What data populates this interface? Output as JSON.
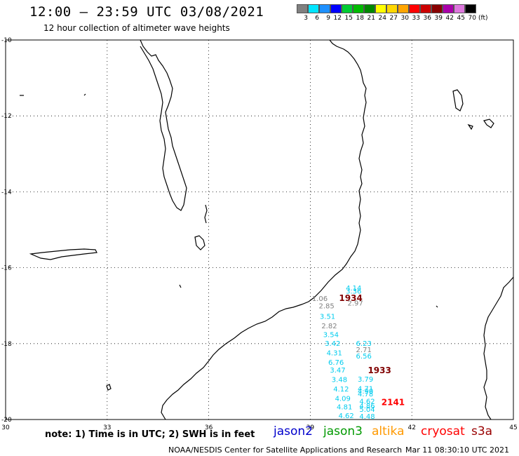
{
  "header": {
    "title": "12:00 – 23:59 UTC 03/08/2021",
    "subtitle": "12 hour collection of altimeter wave heights"
  },
  "color_scale": {
    "unit_label": "(ft)",
    "bins": [
      {
        "label": "3",
        "color": "#808080"
      },
      {
        "label": "6",
        "color": "#00e5ff"
      },
      {
        "label": "9",
        "color": "#1e90ff"
      },
      {
        "label": "12",
        "color": "#0000ff"
      },
      {
        "label": "15",
        "color": "#00cc33"
      },
      {
        "label": "18",
        "color": "#00bb00"
      },
      {
        "label": "21",
        "color": "#008800"
      },
      {
        "label": "24",
        "color": "#ffff00"
      },
      {
        "label": "27",
        "color": "#ffd700"
      },
      {
        "label": "30",
        "color": "#ffa500"
      },
      {
        "label": "33",
        "color": "#ff0000"
      },
      {
        "label": "36",
        "color": "#cc0000"
      },
      {
        "label": "39",
        "color": "#880000"
      },
      {
        "label": "42",
        "color": "#aa00aa"
      },
      {
        "label": "45",
        "color": "#dd77dd"
      },
      {
        "label": "70",
        "color": "#000000"
      }
    ]
  },
  "axes": {
    "x_labels": [
      "30",
      "33",
      "36",
      "39",
      "42",
      "45"
    ],
    "y_labels": [
      "-10",
      "-12",
      "-14",
      "-16",
      "-18",
      "-20"
    ]
  },
  "observations": [
    {
      "lon": 39.05,
      "lat": -16.88,
      "text": "1.06",
      "color": "#808080"
    },
    {
      "lon": 39.25,
      "lat": -17.07,
      "text": "2.85",
      "color": "#808080"
    },
    {
      "lon": 39.28,
      "lat": -17.35,
      "text": "3.51",
      "color": "#00ccee"
    },
    {
      "lon": 39.33,
      "lat": -17.6,
      "text": "2.82",
      "color": "#808080"
    },
    {
      "lon": 39.38,
      "lat": -17.83,
      "text": "3.54",
      "color": "#00ccee"
    },
    {
      "lon": 39.43,
      "lat": -18.06,
      "text": "3.42",
      "color": "#00ccee"
    },
    {
      "lon": 39.48,
      "lat": -18.31,
      "text": "4.31",
      "color": "#00ccee"
    },
    {
      "lon": 39.53,
      "lat": -18.56,
      "text": "6.76",
      "color": "#00ccee"
    },
    {
      "lon": 39.58,
      "lat": -18.76,
      "text": "3.47",
      "color": "#00ccee"
    },
    {
      "lon": 39.63,
      "lat": -19.01,
      "text": "3.48",
      "color": "#00ccee"
    },
    {
      "lon": 39.68,
      "lat": -19.26,
      "text": "4.12",
      "color": "#00ccee"
    },
    {
      "lon": 39.73,
      "lat": -19.51,
      "text": "4.09",
      "color": "#00ccee"
    },
    {
      "lon": 39.78,
      "lat": -19.73,
      "text": "4.81",
      "color": "#00ccee"
    },
    {
      "lon": 39.83,
      "lat": -19.96,
      "text": "4.62",
      "color": "#00ccee"
    },
    {
      "lon": 40.05,
      "lat": -16.6,
      "text": "4.14",
      "color": "#00ccee"
    },
    {
      "lon": 40.05,
      "lat": -16.68,
      "text": "3.36",
      "color": "#00ccee"
    },
    {
      "lon": 40.1,
      "lat": -17.0,
      "text": "2.97",
      "color": "#808080"
    },
    {
      "lon": 40.35,
      "lat": -18.06,
      "text": "6.23",
      "color": "#00ccee"
    },
    {
      "lon": 40.35,
      "lat": -18.23,
      "text": "2.71",
      "color": "#808080"
    },
    {
      "lon": 40.35,
      "lat": -18.39,
      "text": "6.56",
      "color": "#00ccee"
    },
    {
      "lon": 40.4,
      "lat": -19.0,
      "text": "3.79",
      "color": "#00ccee"
    },
    {
      "lon": 40.4,
      "lat": -19.25,
      "text": "4.71",
      "color": "#00ccee"
    },
    {
      "lon": 40.4,
      "lat": -19.32,
      "text": "4.90",
      "color": "#00ccee"
    },
    {
      "lon": 40.4,
      "lat": -19.39,
      "text": "4.78",
      "color": "#00ccee"
    },
    {
      "lon": 40.45,
      "lat": -19.58,
      "text": "4.62",
      "color": "#00ccee"
    },
    {
      "lon": 40.45,
      "lat": -19.7,
      "text": "4.86",
      "color": "#00ccee"
    },
    {
      "lon": 40.45,
      "lat": -19.8,
      "text": "5.04",
      "color": "#00ccee"
    },
    {
      "lon": 40.45,
      "lat": -19.98,
      "text": "4.48",
      "color": "#00ccee"
    }
  ],
  "pass_times": [
    {
      "lon": 39.85,
      "lat": -16.88,
      "text": "1934",
      "color": "#800000"
    },
    {
      "lon": 40.7,
      "lat": -18.78,
      "text": "1933",
      "color": "#800000"
    },
    {
      "lon": 41.1,
      "lat": -19.62,
      "text": "2141",
      "color": "#ff0000"
    }
  ],
  "footer": {
    "note": "note: 1) Time is in UTC; 2) SWH is in feet",
    "legend": [
      {
        "label": "jason2",
        "color": "#0000cc"
      },
      {
        "label": "jason3",
        "color": "#009900"
      },
      {
        "label": "altika",
        "color": "#ff9900"
      },
      {
        "label": "cryosat",
        "color": "#ff0000"
      },
      {
        "label": "s3a",
        "color": "#990000"
      }
    ],
    "credit": "NOAA/NESDIS Center for Satellite Applications and Research",
    "timestamp": "Mar 11 08:30:10 UTC 2021"
  }
}
